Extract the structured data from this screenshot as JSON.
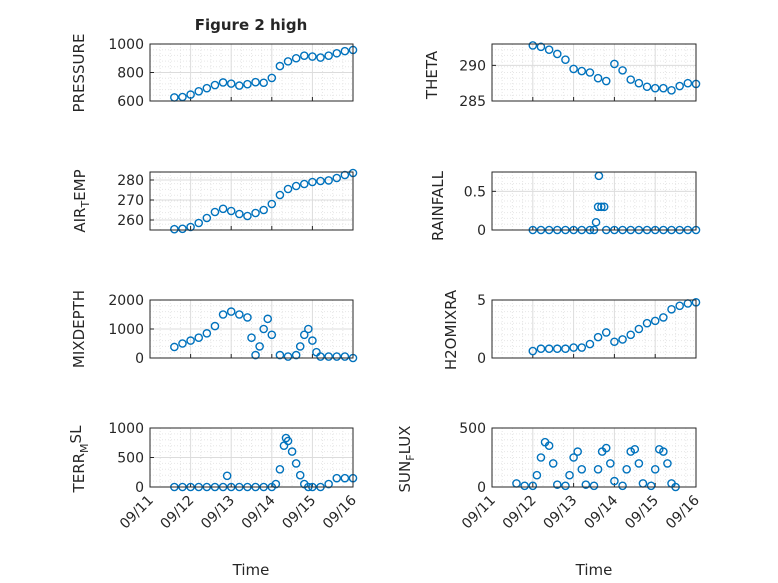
{
  "figure": {
    "title": "Figure 2 high",
    "xlabel": "Time",
    "x_tick_labels": [
      "09/11",
      "09/12",
      "09/13",
      "09/14",
      "09/15",
      "09/16"
    ]
  },
  "colors": {
    "marker": "#0072BD",
    "axes": "#262626",
    "grid": "#dcdcdc",
    "minor_grid": "#e6e6e6",
    "background": "#ffffff"
  },
  "chart_data": [
    {
      "type": "scatter",
      "ylabel": "PRESSURE",
      "title": "Figure 2 high",
      "xlim": [
        0,
        5
      ],
      "ylim": [
        600,
        1000
      ],
      "yticks": [
        600,
        800,
        1000
      ],
      "grid": true,
      "x_units": "days since 09/11",
      "points": [
        [
          0.6,
          625
        ],
        [
          0.8,
          628
        ],
        [
          1.0,
          645
        ],
        [
          1.2,
          668
        ],
        [
          1.4,
          690
        ],
        [
          1.6,
          712
        ],
        [
          1.8,
          730
        ],
        [
          2.0,
          722
        ],
        [
          2.2,
          708
        ],
        [
          2.4,
          718
        ],
        [
          2.6,
          732
        ],
        [
          2.8,
          728
        ],
        [
          3.0,
          762
        ],
        [
          3.2,
          845
        ],
        [
          3.4,
          878
        ],
        [
          3.6,
          900
        ],
        [
          3.8,
          918
        ],
        [
          4.0,
          912
        ],
        [
          4.2,
          905
        ],
        [
          4.4,
          918
        ],
        [
          4.6,
          935
        ],
        [
          4.8,
          950
        ],
        [
          5.0,
          958
        ]
      ]
    },
    {
      "type": "scatter",
      "ylabel": "THETA",
      "title": "",
      "xlim": [
        0,
        5
      ],
      "ylim": [
        285,
        293
      ],
      "yticks": [
        285,
        290
      ],
      "grid": true,
      "x_units": "days since 09/11",
      "points": [
        [
          1.0,
          292.8
        ],
        [
          1.2,
          292.6
        ],
        [
          1.4,
          292.2
        ],
        [
          1.6,
          291.6
        ],
        [
          1.8,
          290.8
        ],
        [
          2.0,
          289.5
        ],
        [
          2.2,
          289.2
        ],
        [
          2.4,
          289.0
        ],
        [
          2.6,
          288.2
        ],
        [
          2.8,
          287.8
        ],
        [
          3.0,
          290.2
        ],
        [
          3.2,
          289.3
        ],
        [
          3.4,
          288.0
        ],
        [
          3.6,
          287.5
        ],
        [
          3.8,
          287.0
        ],
        [
          4.0,
          286.8
        ],
        [
          4.2,
          286.8
        ],
        [
          4.4,
          286.5
        ],
        [
          4.6,
          287.1
        ],
        [
          4.8,
          287.5
        ],
        [
          5.0,
          287.4
        ]
      ]
    },
    {
      "type": "scatter",
      "ylabel": "AIR_TEMP",
      "title": "",
      "xlim": [
        0,
        5
      ],
      "ylim": [
        255,
        284
      ],
      "yticks": [
        260,
        270,
        280
      ],
      "grid": true,
      "x_units": "days since 09/11",
      "points": [
        [
          0.6,
          255.4
        ],
        [
          0.8,
          255.6
        ],
        [
          1.0,
          256.5
        ],
        [
          1.2,
          258.5
        ],
        [
          1.4,
          261.0
        ],
        [
          1.6,
          264.0
        ],
        [
          1.8,
          265.6
        ],
        [
          2.0,
          264.5
        ],
        [
          2.2,
          263.0
        ],
        [
          2.4,
          262.0
        ],
        [
          2.6,
          263.5
        ],
        [
          2.8,
          265.0
        ],
        [
          3.0,
          268.0
        ],
        [
          3.2,
          272.5
        ],
        [
          3.4,
          275.5
        ],
        [
          3.6,
          277.0
        ],
        [
          3.8,
          278.0
        ],
        [
          4.0,
          279.0
        ],
        [
          4.2,
          279.5
        ],
        [
          4.4,
          279.8
        ],
        [
          4.6,
          281.0
        ],
        [
          4.8,
          282.5
        ],
        [
          5.0,
          283.5
        ]
      ]
    },
    {
      "type": "scatter",
      "ylabel": "RAINFALL",
      "title": "",
      "xlim": [
        0,
        5
      ],
      "ylim": [
        0,
        0.75
      ],
      "yticks": [
        0,
        0.5
      ],
      "grid": true,
      "x_units": "days since 09/11",
      "points": [
        [
          1.0,
          0
        ],
        [
          1.2,
          0
        ],
        [
          1.4,
          0
        ],
        [
          1.6,
          0
        ],
        [
          1.8,
          0
        ],
        [
          2.0,
          0
        ],
        [
          2.2,
          0
        ],
        [
          2.4,
          0
        ],
        [
          2.5,
          0
        ],
        [
          2.55,
          0.1
        ],
        [
          2.6,
          0.3
        ],
        [
          2.62,
          0.7
        ],
        [
          2.68,
          0.3
        ],
        [
          2.75,
          0.3
        ],
        [
          2.8,
          0
        ],
        [
          3.0,
          0
        ],
        [
          3.2,
          0
        ],
        [
          3.4,
          0
        ],
        [
          3.6,
          0
        ],
        [
          3.8,
          0
        ],
        [
          4.0,
          0
        ],
        [
          4.2,
          0
        ],
        [
          4.4,
          0
        ],
        [
          4.6,
          0
        ],
        [
          4.8,
          0
        ],
        [
          5.0,
          0
        ]
      ]
    },
    {
      "type": "scatter",
      "ylabel": "MIXDEPTH",
      "title": "",
      "xlim": [
        0,
        5
      ],
      "ylim": [
        0,
        2000
      ],
      "yticks": [
        0,
        1000,
        2000
      ],
      "grid": true,
      "x_units": "days since 09/11",
      "points": [
        [
          0.6,
          380
        ],
        [
          0.8,
          500
        ],
        [
          1.0,
          600
        ],
        [
          1.2,
          700
        ],
        [
          1.4,
          850
        ],
        [
          1.6,
          1100
        ],
        [
          1.8,
          1500
        ],
        [
          2.0,
          1600
        ],
        [
          2.2,
          1500
        ],
        [
          2.4,
          1400
        ],
        [
          2.5,
          700
        ],
        [
          2.6,
          100
        ],
        [
          2.7,
          400
        ],
        [
          2.8,
          1000
        ],
        [
          2.9,
          1350
        ],
        [
          3.0,
          800
        ],
        [
          3.2,
          100
        ],
        [
          3.4,
          50
        ],
        [
          3.6,
          100
        ],
        [
          3.7,
          400
        ],
        [
          3.8,
          800
        ],
        [
          3.9,
          1000
        ],
        [
          4.0,
          600
        ],
        [
          4.1,
          200
        ],
        [
          4.2,
          50
        ],
        [
          4.4,
          50
        ],
        [
          4.6,
          50
        ],
        [
          4.8,
          50
        ],
        [
          5.0,
          0
        ]
      ]
    },
    {
      "type": "scatter",
      "ylabel": "H2OMIXRA",
      "title": "",
      "xlim": [
        0,
        5
      ],
      "ylim": [
        0,
        5
      ],
      "yticks": [
        0,
        5
      ],
      "grid": true,
      "x_units": "days since 09/11",
      "points": [
        [
          1.0,
          0.6
        ],
        [
          1.2,
          0.8
        ],
        [
          1.4,
          0.8
        ],
        [
          1.6,
          0.8
        ],
        [
          1.8,
          0.8
        ],
        [
          2.0,
          0.9
        ],
        [
          2.2,
          0.9
        ],
        [
          2.4,
          1.2
        ],
        [
          2.6,
          1.8
        ],
        [
          2.8,
          2.2
        ],
        [
          3.0,
          1.4
        ],
        [
          3.2,
          1.6
        ],
        [
          3.4,
          2.0
        ],
        [
          3.6,
          2.5
        ],
        [
          3.8,
          3.0
        ],
        [
          4.0,
          3.2
        ],
        [
          4.2,
          3.5
        ],
        [
          4.4,
          4.2
        ],
        [
          4.6,
          4.5
        ],
        [
          4.8,
          4.7
        ],
        [
          5.0,
          4.8
        ]
      ]
    },
    {
      "type": "scatter",
      "ylabel": "TERR_MSL",
      "title": "",
      "xlim": [
        0,
        5
      ],
      "ylim": [
        0,
        1000
      ],
      "yticks": [
        0,
        500,
        1000
      ],
      "grid": true,
      "x_units": "days since 09/11",
      "points": [
        [
          0.6,
          0
        ],
        [
          0.8,
          0
        ],
        [
          1.0,
          0
        ],
        [
          1.2,
          0
        ],
        [
          1.4,
          0
        ],
        [
          1.6,
          0
        ],
        [
          1.8,
          0
        ],
        [
          1.9,
          190
        ],
        [
          2.0,
          0
        ],
        [
          2.2,
          0
        ],
        [
          2.4,
          0
        ],
        [
          2.6,
          0
        ],
        [
          2.8,
          0
        ],
        [
          3.0,
          0
        ],
        [
          3.1,
          50
        ],
        [
          3.2,
          300
        ],
        [
          3.3,
          700
        ],
        [
          3.35,
          830
        ],
        [
          3.4,
          780
        ],
        [
          3.5,
          600
        ],
        [
          3.6,
          400
        ],
        [
          3.7,
          200
        ],
        [
          3.8,
          50
        ],
        [
          3.9,
          0
        ],
        [
          4.0,
          0
        ],
        [
          4.2,
          0
        ],
        [
          4.4,
          50
        ],
        [
          4.6,
          150
        ],
        [
          4.8,
          150
        ],
        [
          5.0,
          150
        ]
      ]
    },
    {
      "type": "scatter",
      "ylabel": "SUN_FLUX",
      "title": "",
      "xlim": [
        0,
        5
      ],
      "ylim": [
        0,
        500
      ],
      "yticks": [
        0,
        500
      ],
      "grid": true,
      "x_units": "days since 09/11",
      "points": [
        [
          0.6,
          30
        ],
        [
          0.8,
          10
        ],
        [
          1.0,
          10
        ],
        [
          1.1,
          100
        ],
        [
          1.2,
          250
        ],
        [
          1.3,
          380
        ],
        [
          1.4,
          350
        ],
        [
          1.5,
          200
        ],
        [
          1.6,
          20
        ],
        [
          1.8,
          10
        ],
        [
          1.9,
          100
        ],
        [
          2.0,
          250
        ],
        [
          2.1,
          300
        ],
        [
          2.2,
          150
        ],
        [
          2.3,
          20
        ],
        [
          2.5,
          10
        ],
        [
          2.6,
          150
        ],
        [
          2.7,
          300
        ],
        [
          2.8,
          330
        ],
        [
          2.9,
          200
        ],
        [
          3.0,
          50
        ],
        [
          3.2,
          10
        ],
        [
          3.3,
          150
        ],
        [
          3.4,
          300
        ],
        [
          3.5,
          320
        ],
        [
          3.6,
          200
        ],
        [
          3.7,
          30
        ],
        [
          3.9,
          10
        ],
        [
          4.0,
          150
        ],
        [
          4.1,
          320
        ],
        [
          4.2,
          300
        ],
        [
          4.3,
          200
        ],
        [
          4.4,
          30
        ],
        [
          4.5,
          0
        ]
      ]
    }
  ]
}
